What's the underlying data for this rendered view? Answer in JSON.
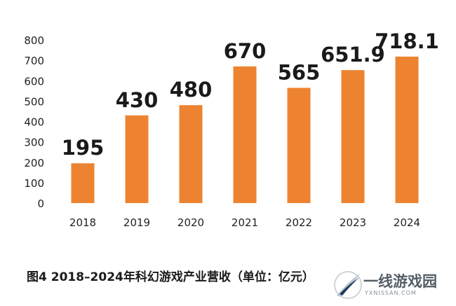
{
  "chart_data": {
    "type": "bar",
    "categories": [
      "2018",
      "2019",
      "2020",
      "2021",
      "2022",
      "2023",
      "2024"
    ],
    "values": [
      195,
      430,
      480,
      670,
      565,
      651.9,
      718.1
    ],
    "value_labels": [
      "195",
      "430",
      "480",
      "670",
      "565",
      "651.9",
      "718.1"
    ],
    "ylim": [
      0,
      800
    ],
    "yticks": [
      "0",
      "100",
      "200",
      "300",
      "400",
      "500",
      "600",
      "700",
      "800"
    ],
    "grid": false,
    "bar_color": "#ED8330"
  },
  "caption": "图4  2018–2024年科幻游戏产业营收（单位：亿元）",
  "watermark": {
    "name": "一线游戏园",
    "url": "YXNISSAN.COM",
    "logo": "swoosh-logo"
  }
}
